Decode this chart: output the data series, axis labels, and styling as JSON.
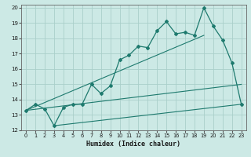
{
  "xlabel": "Humidex (Indice chaleur)",
  "xlim": [
    -0.5,
    23.5
  ],
  "ylim": [
    12,
    20.2
  ],
  "xticks": [
    0,
    1,
    2,
    3,
    4,
    5,
    6,
    7,
    8,
    9,
    10,
    11,
    12,
    13,
    14,
    15,
    16,
    17,
    18,
    19,
    20,
    21,
    22,
    23
  ],
  "yticks": [
    12,
    13,
    14,
    15,
    16,
    17,
    18,
    19,
    20
  ],
  "bg_color": "#cce9e5",
  "grid_color": "#aacfca",
  "line_color": "#1e7a6e",
  "series1_x": [
    0,
    1,
    2,
    3,
    4,
    5,
    6,
    7,
    8,
    9,
    10,
    11,
    12,
    13,
    14,
    15,
    16,
    17,
    18,
    19,
    20,
    21,
    22,
    23
  ],
  "series1_y": [
    13.3,
    13.7,
    13.4,
    12.3,
    13.5,
    13.7,
    13.7,
    15.0,
    14.4,
    14.9,
    16.6,
    16.9,
    17.5,
    17.4,
    18.5,
    19.1,
    18.3,
    18.4,
    18.2,
    20.0,
    18.8,
    17.9,
    16.4,
    13.7
  ],
  "series2_x": [
    0,
    19
  ],
  "series2_y": [
    13.3,
    18.2
  ],
  "series3_x": [
    0,
    23
  ],
  "series3_y": [
    13.3,
    15.0
  ],
  "series4_x": [
    3,
    23
  ],
  "series4_y": [
    12.3,
    13.7
  ]
}
